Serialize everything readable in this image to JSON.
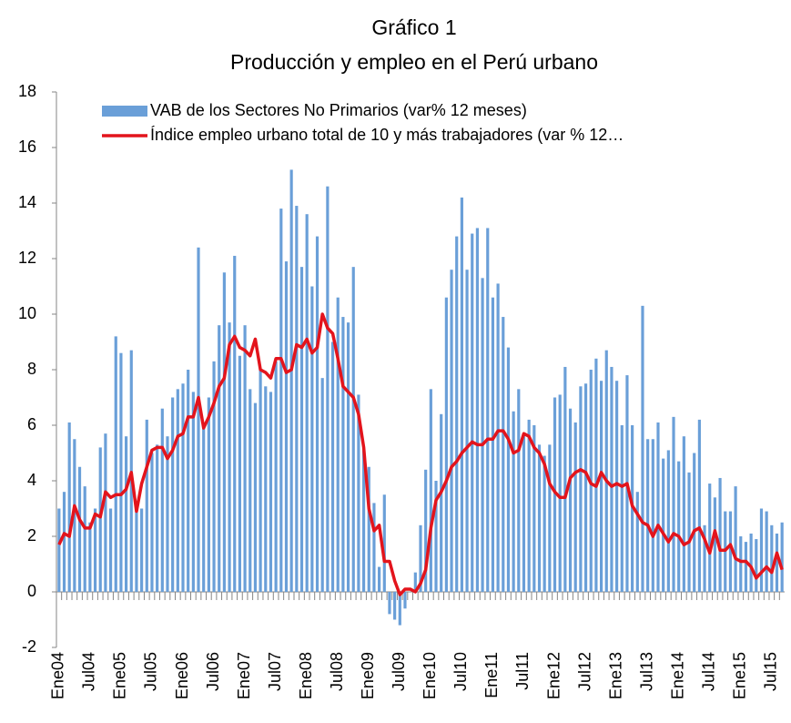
{
  "chart_data": {
    "type": "bar_line",
    "title": "Gráfico 1",
    "subtitle": "Producción y empleo en el Perú urbano",
    "legend": "top-left",
    "categories": [
      "Ene04",
      null,
      null,
      null,
      null,
      null,
      "Jul04",
      null,
      null,
      null,
      null,
      null,
      "Ene05",
      null,
      null,
      null,
      null,
      null,
      "Jul05",
      null,
      null,
      null,
      null,
      null,
      "Ene06",
      null,
      null,
      null,
      null,
      null,
      "Jul06",
      null,
      null,
      null,
      null,
      null,
      "Ene07",
      null,
      null,
      null,
      null,
      null,
      "Jul07",
      null,
      null,
      null,
      null,
      null,
      "Ene08",
      null,
      null,
      null,
      null,
      null,
      "Jul08",
      null,
      null,
      null,
      null,
      null,
      "Ene09",
      null,
      null,
      null,
      null,
      null,
      "Jul09",
      null,
      null,
      null,
      null,
      null,
      "Ene10",
      null,
      null,
      null,
      null,
      null,
      "Jul10",
      null,
      null,
      null,
      null,
      null,
      "Ene11",
      null,
      null,
      null,
      null,
      null,
      "Jul11",
      null,
      null,
      null,
      null,
      null,
      "Ene12",
      null,
      null,
      null,
      null,
      null,
      "Jul12",
      null,
      null,
      null,
      null,
      null,
      "Ene13",
      null,
      null,
      null,
      null,
      null,
      "Jul13",
      null,
      null,
      null,
      null,
      null,
      "Ene14",
      null,
      null,
      null,
      null,
      null,
      "Jul14",
      null,
      null,
      null,
      null,
      null,
      "Ene15",
      null,
      null,
      null,
      null,
      null,
      "Jul15",
      null,
      null
    ],
    "series": [
      {
        "name": "VAB de los Sectores No Primarios (var% 12 meses)",
        "type": "bar",
        "color": "#6a9fd8",
        "values": [
          3.0,
          3.6,
          6.1,
          5.5,
          4.5,
          3.8,
          2.5,
          3.0,
          5.2,
          5.7,
          3.0,
          9.2,
          8.6,
          5.6,
          8.7,
          3.0,
          3.0,
          6.2,
          5.0,
          5.3,
          6.6,
          5.6,
          7.0,
          7.3,
          7.5,
          8.0,
          7.2,
          12.4,
          5.9,
          7.0,
          8.3,
          9.6,
          11.5,
          9.7,
          12.1,
          8.5,
          9.6,
          7.3,
          6.8,
          8.0,
          7.4,
          7.2,
          8.3,
          13.8,
          11.9,
          15.2,
          13.9,
          11.7,
          13.6,
          11.0,
          12.8,
          7.7,
          14.6,
          9.0,
          10.6,
          9.9,
          9.7,
          11.7,
          7.1,
          5.1,
          4.5,
          3.2,
          0.9,
          3.5,
          -0.8,
          -1.0,
          -1.2,
          -0.6,
          0.0,
          0.7,
          2.4,
          4.4,
          7.3,
          4.0,
          6.4,
          10.6,
          11.6,
          12.8,
          14.2,
          11.6,
          12.9,
          13.1,
          11.3,
          13.1,
          10.6,
          11.1,
          9.9,
          8.8,
          6.5,
          7.3,
          5.6,
          6.2,
          6.0,
          5.3,
          4.9,
          5.3,
          7.0,
          7.1,
          8.1,
          6.6,
          6.1,
          7.4,
          7.5,
          8.0,
          8.4,
          7.6,
          8.7,
          8.1,
          7.6,
          6.0,
          7.8,
          6.0,
          3.6,
          10.3,
          5.5,
          5.5,
          6.1,
          4.8,
          5.1,
          6.3,
          4.7,
          5.6,
          4.3,
          5.0,
          6.2,
          2.4,
          3.9,
          3.4,
          4.1,
          2.9,
          2.9,
          3.8,
          2.0,
          1.8,
          2.1,
          1.9,
          3.0,
          2.9,
          2.4,
          2.1,
          2.5
        ]
      },
      {
        "name": "Índice empleo urbano total de 10 y más trabajadores (var % 12…",
        "type": "line",
        "color": "#e3141c",
        "values": [
          1.7,
          2.1,
          2.0,
          3.1,
          2.6,
          2.3,
          2.3,
          2.8,
          2.7,
          3.6,
          3.4,
          3.5,
          3.5,
          3.7,
          4.3,
          2.9,
          3.9,
          4.5,
          5.1,
          5.2,
          5.2,
          4.8,
          5.1,
          5.6,
          5.7,
          6.3,
          6.3,
          7.0,
          5.9,
          6.3,
          6.8,
          7.4,
          7.7,
          8.9,
          9.2,
          8.8,
          8.7,
          8.5,
          9.1,
          8.0,
          7.9,
          7.7,
          8.4,
          8.4,
          7.9,
          8.0,
          8.9,
          8.8,
          9.1,
          8.6,
          8.8,
          10.0,
          9.5,
          9.3,
          8.4,
          7.4,
          7.2,
          7.0,
          6.4,
          5.2,
          3.0,
          2.2,
          2.4,
          1.1,
          1.1,
          0.4,
          -0.1,
          0.1,
          0.1,
          0.0,
          0.3,
          0.8,
          2.3,
          3.3,
          3.6,
          4.0,
          4.5,
          4.7,
          5.0,
          5.2,
          5.4,
          5.3,
          5.3,
          5.5,
          5.5,
          5.8,
          5.8,
          5.5,
          5.0,
          5.1,
          5.7,
          5.6,
          5.2,
          5.0,
          4.6,
          3.9,
          3.6,
          3.4,
          3.4,
          4.1,
          4.3,
          4.4,
          4.3,
          3.9,
          3.8,
          4.3,
          4.0,
          3.8,
          3.9,
          3.8,
          3.9,
          3.1,
          2.8,
          2.5,
          2.4,
          2.0,
          2.4,
          2.1,
          1.8,
          2.1,
          2.0,
          1.7,
          1.8,
          2.2,
          2.3,
          1.9,
          1.4,
          2.2,
          1.5,
          1.5,
          1.7,
          1.2,
          1.1,
          1.1,
          0.9,
          0.5,
          0.7,
          0.9,
          0.7,
          1.4,
          0.8
        ]
      }
    ],
    "ylim": [
      -2,
      18
    ],
    "yticks": [
      -2,
      0,
      2,
      4,
      6,
      8,
      10,
      12,
      14,
      16,
      18
    ],
    "grid": false
  }
}
